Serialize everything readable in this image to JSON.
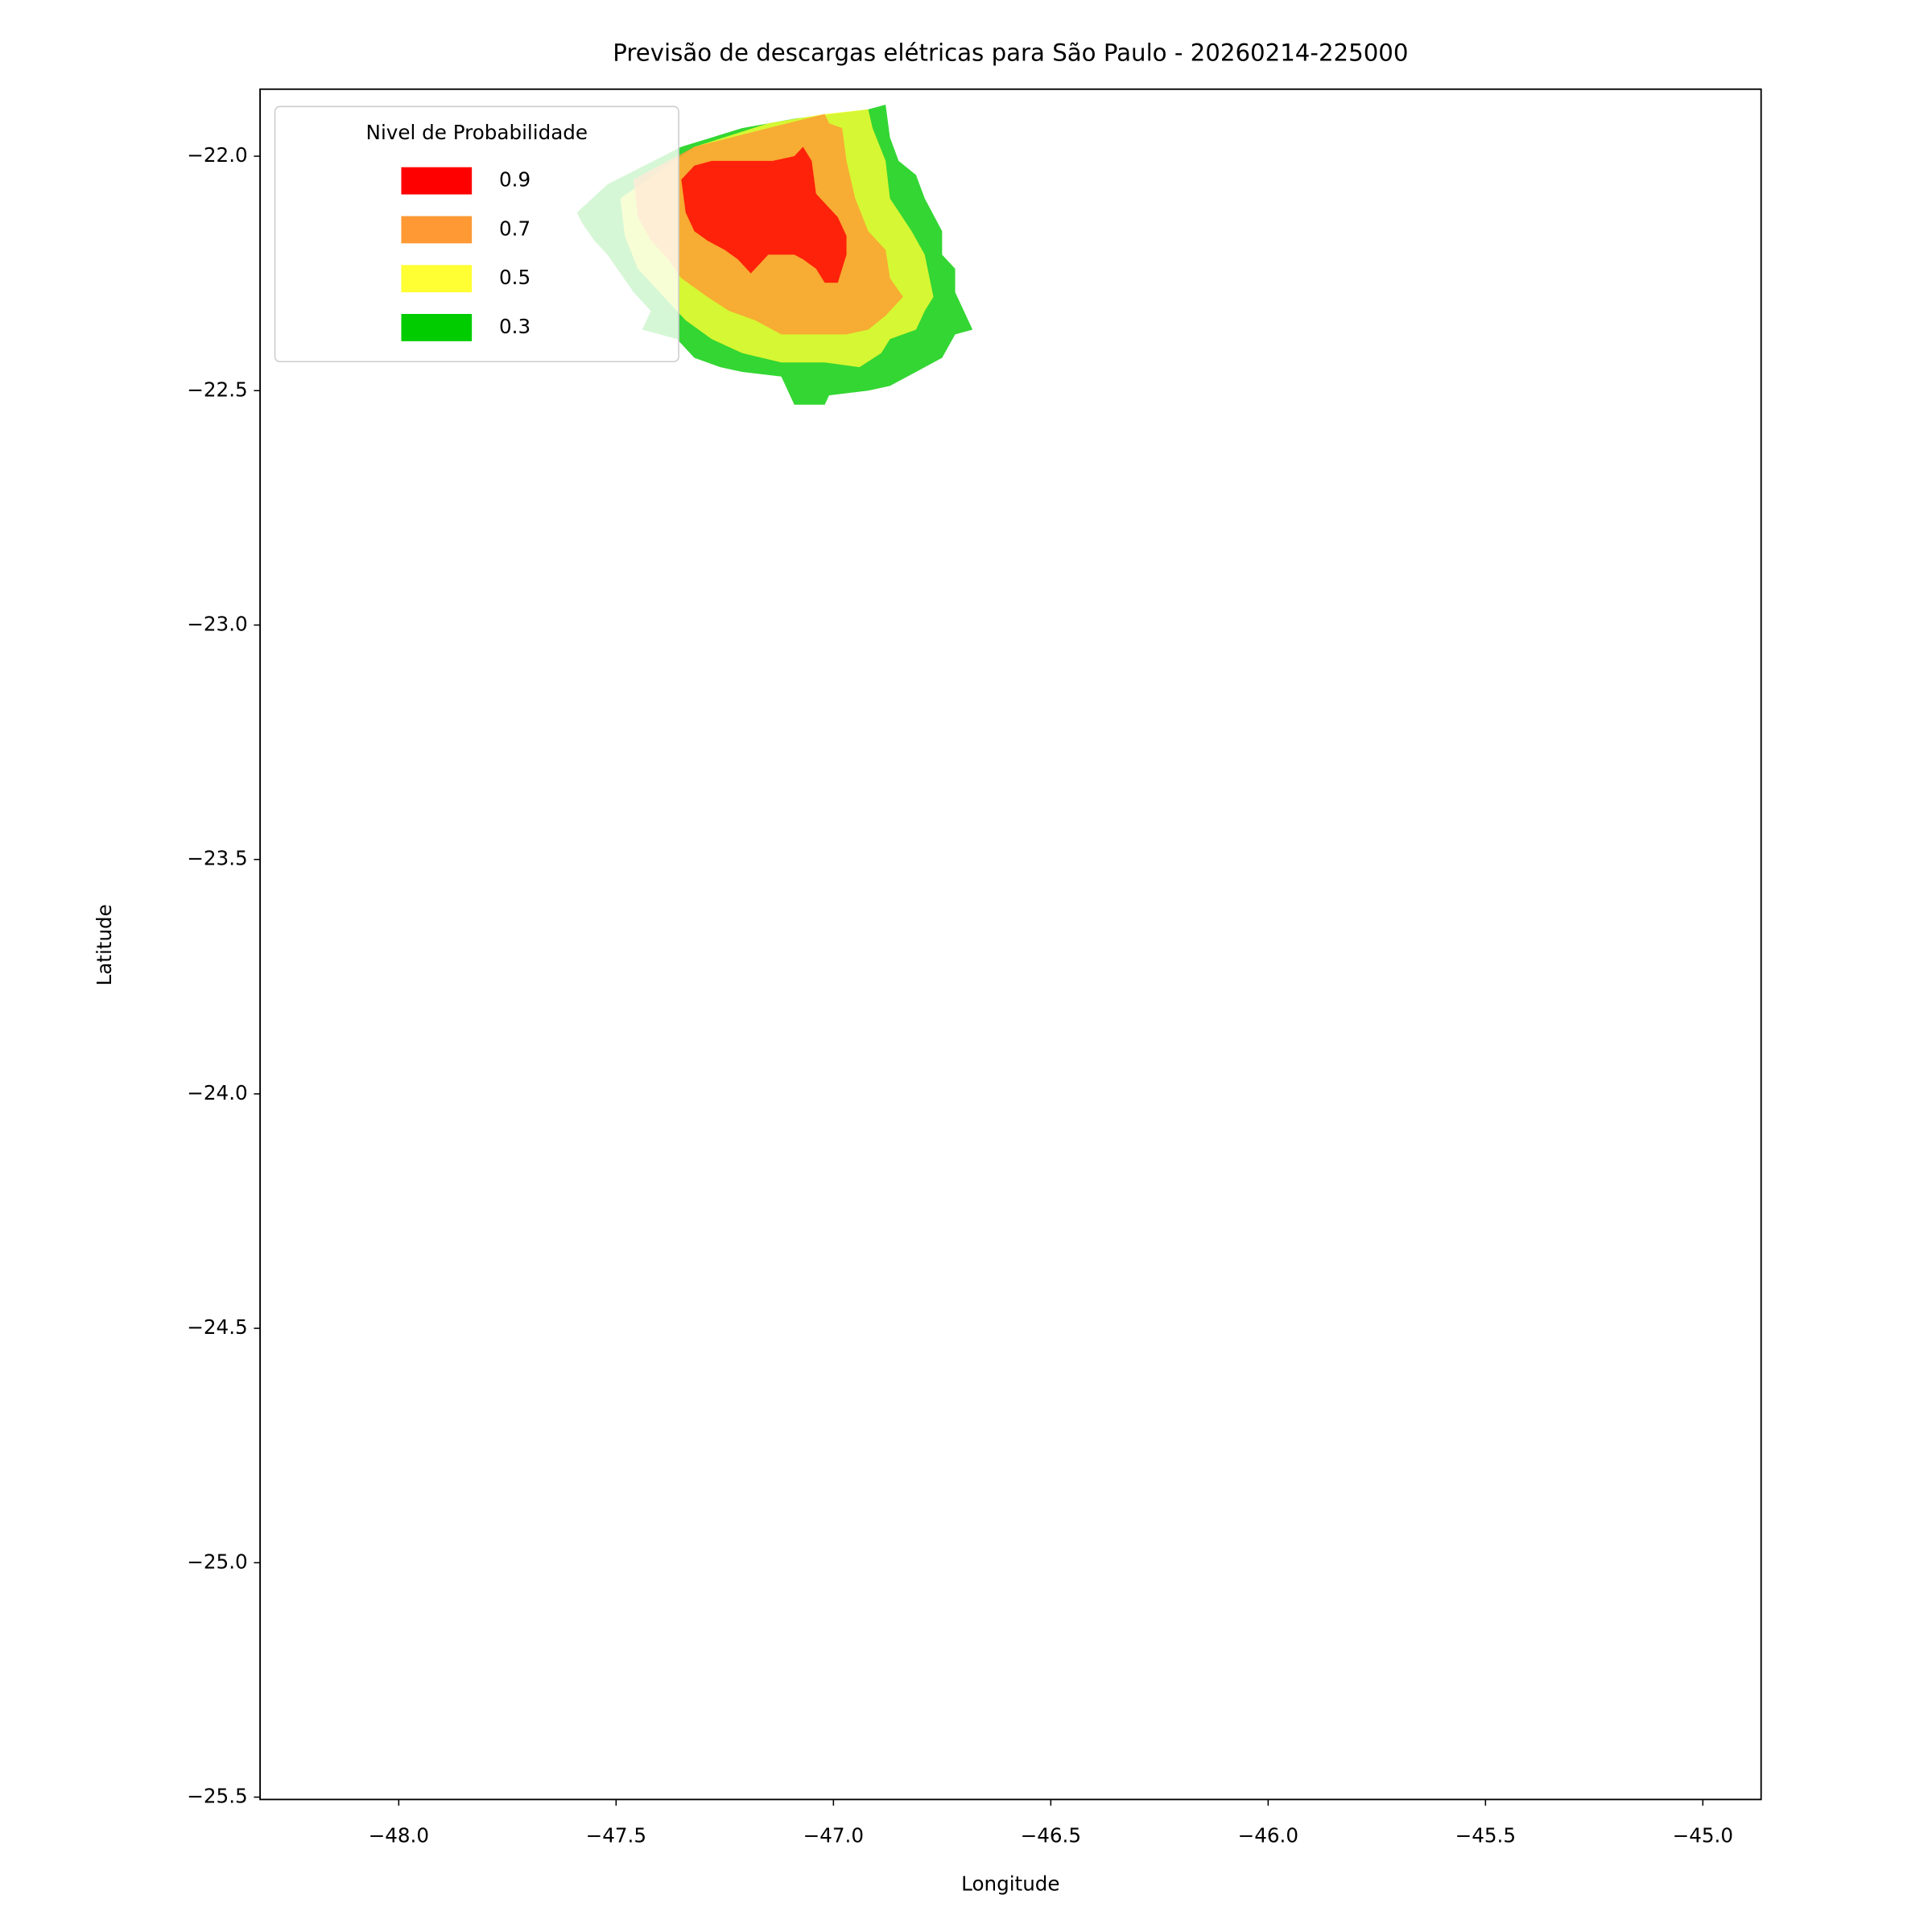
{
  "chart_data": {
    "type": "contour",
    "title": "Previsão de descargas elétricas para São Paulo - 20260214-225000",
    "xlabel": "Longitude",
    "ylabel": "Latitude",
    "xlim": [
      -48.319,
      -44.866
    ],
    "ylim": [
      -25.505,
      -21.857
    ],
    "xticks": [
      {
        "value": -48.0,
        "label": "−48.0"
      },
      {
        "value": -47.5,
        "label": "−47.5"
      },
      {
        "value": -47.0,
        "label": "−47.0"
      },
      {
        "value": -46.5,
        "label": "−46.5"
      },
      {
        "value": -46.0,
        "label": "−46.0"
      },
      {
        "value": -45.5,
        "label": "−45.5"
      },
      {
        "value": -45.0,
        "label": "−45.0"
      }
    ],
    "yticks": [
      {
        "value": -22.0,
        "label": "−22.0"
      },
      {
        "value": -22.5,
        "label": "−22.5"
      },
      {
        "value": -23.0,
        "label": "−23.0"
      },
      {
        "value": -23.5,
        "label": "−23.5"
      },
      {
        "value": -24.0,
        "label": "−24.0"
      },
      {
        "value": -24.5,
        "label": "−24.5"
      },
      {
        "value": -25.0,
        "label": "−25.0"
      },
      {
        "value": -25.5,
        "label": "−25.5"
      }
    ],
    "legend_title": "Nivel de Probabilidade",
    "legend_loc": "upper left",
    "series": [
      {
        "name": "0.9",
        "color": "#ff0000",
        "lon": [
          -47.35,
          -47.32,
          -47.28,
          -47.21,
          -47.18,
          -47.14,
          -47.09,
          -47.07,
          -47.05,
          -47.04,
          -47.02,
          -46.99,
          -46.97,
          -46.97,
          -46.98,
          -46.99,
          -47.02,
          -47.04,
          -47.07,
          -47.09,
          -47.15,
          -47.19,
          -47.22,
          -47.25,
          -47.29,
          -47.32,
          -47.34
        ],
        "lat": [
          -22.05,
          -22.02,
          -22.01,
          -22.01,
          -22.01,
          -22.01,
          -22.0,
          -21.98,
          -22.01,
          -22.08,
          -22.1,
          -22.13,
          -22.17,
          -22.21,
          -22.24,
          -22.27,
          -22.27,
          -22.24,
          -22.22,
          -22.21,
          -22.21,
          -22.25,
          -22.22,
          -22.2,
          -22.18,
          -22.16,
          -22.12
        ]
      },
      {
        "name": "0.7",
        "color": "#ff9933",
        "lon": [
          -47.46,
          -47.32,
          -47.15,
          -47.02,
          -47.01,
          -46.98,
          -46.97,
          -46.95,
          -46.92,
          -46.88,
          -46.87,
          -46.84,
          -46.88,
          -46.92,
          -46.97,
          -47.04,
          -47.12,
          -47.18,
          -47.24,
          -47.29,
          -47.35,
          -47.38,
          -47.42,
          -47.45
        ],
        "lat": [
          -22.05,
          -21.98,
          -21.94,
          -21.91,
          -21.93,
          -21.94,
          -22.01,
          -22.09,
          -22.16,
          -22.2,
          -22.26,
          -22.3,
          -22.34,
          -22.37,
          -22.38,
          -22.38,
          -22.38,
          -22.35,
          -22.33,
          -22.3,
          -22.26,
          -22.22,
          -22.18,
          -22.13
        ]
      },
      {
        "name": "0.5",
        "color": "#ffff33",
        "lon": [
          -47.49,
          -47.32,
          -47.15,
          -47.02,
          -46.92,
          -46.91,
          -46.88,
          -46.87,
          -46.82,
          -46.79,
          -46.77,
          -46.79,
          -46.81,
          -46.87,
          -46.89,
          -46.94,
          -47.02,
          -47.12,
          -47.21,
          -47.28,
          -47.34,
          -47.38,
          -47.42,
          -47.45,
          -47.48
        ],
        "lat": [
          -22.09,
          -21.98,
          -21.93,
          -21.91,
          -21.9,
          -21.94,
          -22.01,
          -22.09,
          -22.16,
          -22.21,
          -22.3,
          -22.33,
          -22.37,
          -22.39,
          -22.42,
          -22.45,
          -22.44,
          -22.44,
          -22.42,
          -22.39,
          -22.35,
          -22.31,
          -22.27,
          -22.24,
          -22.17
        ]
      },
      {
        "name": "0.3",
        "color": "#00cc00",
        "lon": [
          -47.59,
          -47.52,
          -47.35,
          -47.21,
          -47.09,
          -46.92,
          -46.88,
          -46.87,
          -46.85,
          -46.81,
          -46.79,
          -46.75,
          -46.75,
          -46.72,
          -46.72,
          -46.68,
          -46.72,
          -46.75,
          -46.81,
          -46.87,
          -46.92,
          -47.01,
          -47.02,
          -47.09,
          -47.12,
          -47.21,
          -47.26,
          -47.32,
          -47.36,
          -47.44,
          -47.42,
          -47.46,
          -47.49,
          -47.52,
          -47.55,
          -47.58
        ],
        "lat": [
          -22.12,
          -22.06,
          -21.98,
          -21.94,
          -21.92,
          -21.9,
          -21.89,
          -21.96,
          -22.01,
          -22.04,
          -22.09,
          -22.16,
          -22.21,
          -22.24,
          -22.29,
          -22.37,
          -22.38,
          -22.43,
          -22.46,
          -22.49,
          -22.5,
          -22.51,
          -22.53,
          -22.53,
          -22.47,
          -22.46,
          -22.45,
          -22.43,
          -22.39,
          -22.37,
          -22.33,
          -22.29,
          -22.25,
          -22.21,
          -22.18,
          -22.14
        ]
      }
    ]
  }
}
